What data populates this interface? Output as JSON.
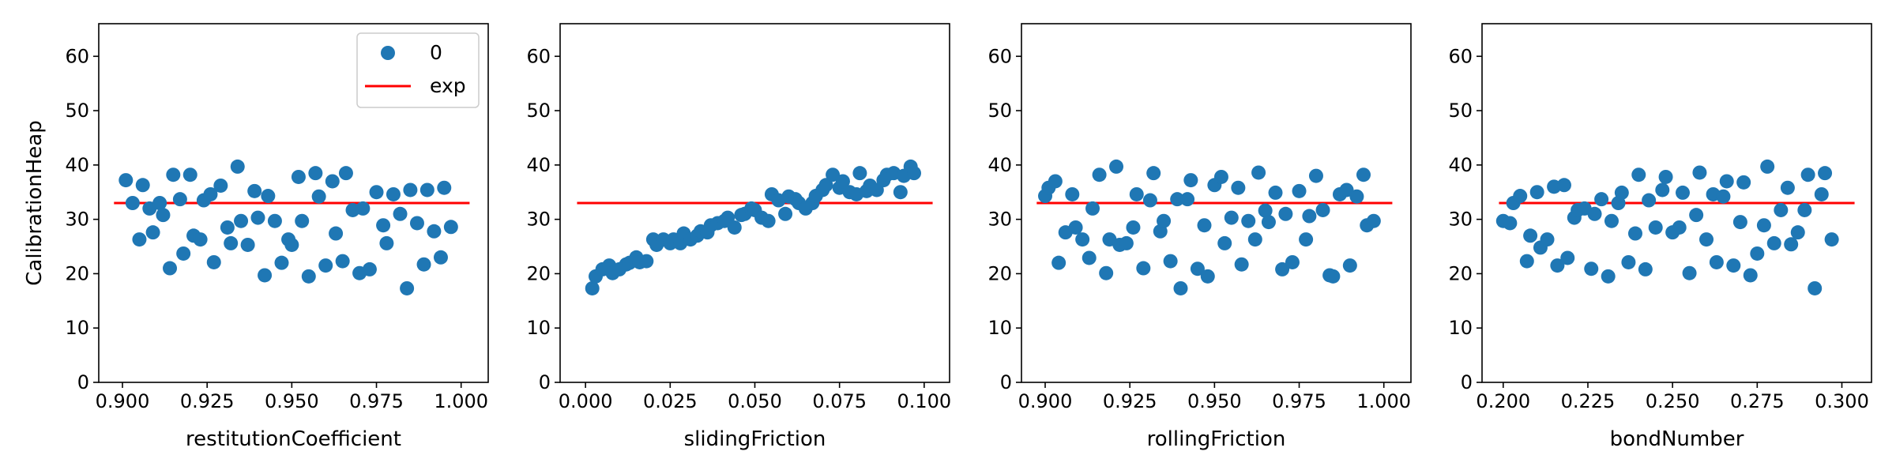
{
  "chart_data": [
    {
      "type": "scatter",
      "xlabel": "restitutionCoefficient",
      "ylabel": "CalibrationHeap",
      "xlim": [
        0.893,
        1.008
      ],
      "ylim": [
        0,
        66
      ],
      "xticks": [
        0.9,
        0.925,
        0.95,
        0.975,
        1.0
      ],
      "xtick_labels": [
        "0.900",
        "0.925",
        "0.950",
        "0.975",
        "1.000"
      ],
      "yticks": [
        0,
        10,
        20,
        30,
        40,
        50,
        60
      ],
      "ytick_labels": [
        "0",
        "10",
        "20",
        "30",
        "40",
        "50",
        "60"
      ],
      "legend": {
        "location": "upper right",
        "entries": [
          "0",
          "exp"
        ]
      },
      "exp_line": {
        "value": 33,
        "x_range": [
          0.8975,
          1.0025
        ]
      },
      "series": [
        {
          "name": "0",
          "color": "#1f77b4",
          "x": [
            0.901,
            0.903,
            0.905,
            0.906,
            0.908,
            0.909,
            0.911,
            0.912,
            0.914,
            0.915,
            0.917,
            0.918,
            0.92,
            0.921,
            0.923,
            0.924,
            0.926,
            0.927,
            0.929,
            0.931,
            0.932,
            0.934,
            0.935,
            0.937,
            0.939,
            0.94,
            0.942,
            0.943,
            0.945,
            0.947,
            0.949,
            0.95,
            0.952,
            0.953,
            0.955,
            0.957,
            0.958,
            0.96,
            0.962,
            0.963,
            0.965,
            0.966,
            0.968,
            0.97,
            0.971,
            0.973,
            0.975,
            0.977,
            0.978,
            0.98,
            0.982,
            0.984,
            0.985,
            0.987,
            0.989,
            0.99,
            0.992,
            0.994,
            0.995,
            0.997
          ],
          "y": [
            37.2,
            33,
            26.3,
            36.3,
            32,
            27.6,
            33,
            30.8,
            21,
            38.2,
            33.7,
            23.7,
            38.2,
            27,
            26.3,
            33.5,
            34.6,
            22.1,
            36.2,
            28.5,
            25.6,
            39.7,
            29.7,
            25.3,
            35.2,
            30.3,
            19.7,
            34.3,
            29.7,
            22,
            26.3,
            25.3,
            37.8,
            29.7,
            19.5,
            38.5,
            34.2,
            21.5,
            37,
            27.4,
            22.3,
            38.5,
            31.7,
            20.1,
            32,
            20.8,
            35,
            28.9,
            25.6,
            34.6,
            31,
            17.3,
            35.4,
            29.3,
            21.7,
            35.4,
            27.8,
            23,
            35.8,
            28.6
          ]
        }
      ]
    },
    {
      "type": "scatter",
      "xlabel": "slidingFriction",
      "ylabel": "",
      "xlim": [
        -0.0075,
        0.1075
      ],
      "ylim": [
        0,
        66
      ],
      "xticks": [
        0,
        0.025,
        0.05,
        0.075,
        0.1
      ],
      "xtick_labels": [
        "0.000",
        "0.025",
        "0.050",
        "0.075",
        "0.100"
      ],
      "yticks": [
        0,
        10,
        20,
        30,
        40,
        50,
        60
      ],
      "ytick_labels": [
        "0",
        "10",
        "20",
        "30",
        "40",
        "50",
        "60"
      ],
      "exp_line": {
        "value": 33,
        "x_range": [
          -0.0025,
          0.1025
        ]
      },
      "series": [
        {
          "name": "0",
          "color": "#1f77b4",
          "x": [
            0.002,
            0.003,
            0.005,
            0.007,
            0.008,
            0.01,
            0.012,
            0.013,
            0.015,
            0.016,
            0.018,
            0.02,
            0.021,
            0.023,
            0.025,
            0.026,
            0.028,
            0.029,
            0.031,
            0.033,
            0.034,
            0.036,
            0.037,
            0.039,
            0.041,
            0.042,
            0.044,
            0.046,
            0.047,
            0.049,
            0.05,
            0.052,
            0.054,
            0.055,
            0.057,
            0.059,
            0.06,
            0.062,
            0.063,
            0.065,
            0.067,
            0.068,
            0.07,
            0.071,
            0.073,
            0.075,
            0.076,
            0.078,
            0.08,
            0.081,
            0.083,
            0.084,
            0.086,
            0.088,
            0.089,
            0.091,
            0.093,
            0.094,
            0.096,
            0.097
          ],
          "y": [
            17.3,
            19.5,
            20.8,
            21.5,
            20.1,
            20.8,
            21.7,
            22,
            23,
            22.1,
            22.3,
            26.3,
            25.3,
            26.3,
            25.6,
            26.3,
            25.6,
            27.4,
            26.3,
            27,
            27.8,
            27.6,
            28.9,
            29.3,
            29.7,
            30.3,
            28.5,
            30.8,
            31,
            32,
            31.7,
            30.3,
            29.7,
            34.6,
            33.5,
            31,
            34.2,
            33.7,
            33,
            32,
            33,
            34.3,
            35.4,
            36.3,
            38.2,
            35.8,
            37,
            35,
            34.6,
            38.5,
            35.2,
            36.2,
            35.4,
            37.2,
            38.2,
            38.5,
            35,
            38,
            39.7,
            38.5
          ]
        }
      ]
    },
    {
      "type": "scatter",
      "xlabel": "rollingFriction",
      "ylabel": "",
      "xlim": [
        0.893,
        1.008
      ],
      "ylim": [
        0,
        66
      ],
      "xticks": [
        0.9,
        0.925,
        0.95,
        0.975,
        1.0
      ],
      "xtick_labels": [
        "0.900",
        "0.925",
        "0.950",
        "0.975",
        "1.000"
      ],
      "yticks": [
        0,
        10,
        20,
        30,
        40,
        50,
        60
      ],
      "ytick_labels": [
        "0",
        "10",
        "20",
        "30",
        "40",
        "50",
        "60"
      ],
      "exp_line": {
        "value": 33,
        "x_range": [
          0.8975,
          1.0025
        ]
      },
      "series": [
        {
          "name": "0",
          "color": "#1f77b4",
          "x": [
            0.9,
            0.901,
            0.903,
            0.904,
            0.906,
            0.908,
            0.909,
            0.911,
            0.913,
            0.914,
            0.916,
            0.918,
            0.919,
            0.921,
            0.922,
            0.924,
            0.926,
            0.927,
            0.929,
            0.931,
            0.932,
            0.934,
            0.935,
            0.937,
            0.939,
            0.94,
            0.942,
            0.943,
            0.945,
            0.947,
            0.948,
            0.95,
            0.952,
            0.953,
            0.955,
            0.957,
            0.958,
            0.96,
            0.962,
            0.963,
            0.965,
            0.966,
            0.968,
            0.97,
            0.971,
            0.973,
            0.975,
            0.977,
            0.978,
            0.98,
            0.982,
            0.984,
            0.985,
            0.987,
            0.989,
            0.99,
            0.992,
            0.994,
            0.995,
            0.997
          ],
          "y": [
            34.3,
            35.8,
            37,
            22,
            27.6,
            34.6,
            28.5,
            26.3,
            22.9,
            32,
            38.2,
            20.1,
            26.3,
            39.7,
            25.3,
            25.6,
            28.5,
            34.6,
            21,
            33.5,
            38.5,
            27.8,
            29.7,
            22.3,
            33.7,
            17.3,
            33.7,
            37.2,
            20.9,
            28.9,
            19.5,
            36.3,
            37.8,
            25.6,
            30.3,
            35.8,
            21.7,
            29.7,
            26.3,
            38.6,
            31.6,
            29.5,
            34.9,
            20.8,
            31,
            22.1,
            35.2,
            26.3,
            30.6,
            38,
            31.7,
            19.7,
            19.5,
            34.6,
            35.4,
            21.5,
            34.2,
            38.2,
            28.9,
            29.7
          ]
        }
      ]
    },
    {
      "type": "scatter",
      "xlabel": "bondNumber",
      "ylabel": "",
      "xlim": [
        0.19375,
        0.30875
      ],
      "ylim": [
        0,
        66
      ],
      "xticks": [
        0.2,
        0.225,
        0.25,
        0.275,
        0.3
      ],
      "xtick_labels": [
        "0.200",
        "0.225",
        "0.250",
        "0.275",
        "0.300"
      ],
      "yticks": [
        0,
        10,
        20,
        30,
        40,
        50,
        60
      ],
      "ytick_labels": [
        "0",
        "10",
        "20",
        "30",
        "40",
        "50",
        "60"
      ],
      "exp_line": {
        "value": 33,
        "x_range": [
          0.19875,
          0.30375
        ]
      },
      "series": [
        {
          "name": "0",
          "color": "#1f77b4",
          "x": [
            0.2,
            0.202,
            0.203,
            0.205,
            0.207,
            0.208,
            0.21,
            0.211,
            0.213,
            0.215,
            0.216,
            0.218,
            0.219,
            0.221,
            0.222,
            0.224,
            0.226,
            0.227,
            0.229,
            0.231,
            0.232,
            0.234,
            0.235,
            0.237,
            0.239,
            0.24,
            0.242,
            0.243,
            0.245,
            0.247,
            0.248,
            0.25,
            0.252,
            0.253,
            0.255,
            0.257,
            0.258,
            0.26,
            0.262,
            0.263,
            0.265,
            0.266,
            0.268,
            0.27,
            0.271,
            0.273,
            0.275,
            0.277,
            0.278,
            0.28,
            0.282,
            0.284,
            0.285,
            0.287,
            0.289,
            0.29,
            0.292,
            0.294,
            0.295,
            0.297
          ],
          "y": [
            29.7,
            29.3,
            33,
            34.3,
            22.3,
            27,
            35,
            24.8,
            26.3,
            36,
            21.5,
            36.3,
            22.9,
            30.3,
            31.7,
            32,
            20.9,
            31,
            33.7,
            19.5,
            29.7,
            33,
            34.9,
            22.1,
            27.4,
            38.2,
            20.8,
            33.5,
            28.5,
            35.4,
            37.8,
            27.6,
            28.5,
            34.9,
            20.1,
            30.8,
            38.6,
            26.3,
            34.6,
            22.1,
            34.2,
            37,
            21.5,
            29.5,
            36.8,
            19.7,
            23.7,
            28.9,
            39.7,
            25.6,
            31.7,
            35.8,
            25.4,
            27.6,
            31.7,
            38.2,
            17.3,
            34.6,
            38.5,
            26.3
          ]
        }
      ]
    }
  ]
}
